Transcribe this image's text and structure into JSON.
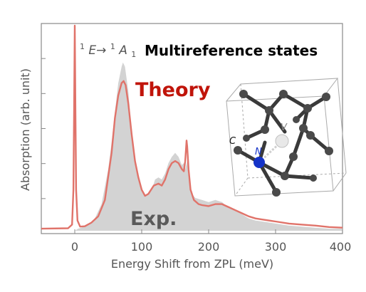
{
  "chart_data": {
    "type": "area",
    "xlabel": "Energy Shift from ZPL (meV)",
    "ylabel": "Absorption (arb. unit)",
    "xlim": [
      -50,
      400
    ],
    "ylim": [
      0,
      1.0
    ],
    "x_ticks": [
      "0",
      "100",
      "200",
      "300",
      "400"
    ],
    "annotations": {
      "transition_pre": "1",
      "transition_mid": "E→",
      "transition_sup2": "1",
      "transition_A": "A",
      "transition_sub": "1",
      "header": "Multireference states",
      "theory": "Theory",
      "experiment": "Exp.",
      "atom_c": "C",
      "atom_n": "N",
      "atom_v": "V"
    },
    "series": [
      {
        "name": "Exp.",
        "style": "filled",
        "color": "#d3d3d3",
        "points": [
          [
            -50,
            0.0
          ],
          [
            0,
            0.0
          ],
          [
            5,
            0.01
          ],
          [
            10,
            0.015
          ],
          [
            20,
            0.03
          ],
          [
            30,
            0.06
          ],
          [
            40,
            0.13
          ],
          [
            50,
            0.3
          ],
          [
            55,
            0.43
          ],
          [
            60,
            0.58
          ],
          [
            65,
            0.72
          ],
          [
            70,
            0.8
          ],
          [
            72,
            0.82
          ],
          [
            75,
            0.8
          ],
          [
            80,
            0.68
          ],
          [
            85,
            0.48
          ],
          [
            90,
            0.34
          ],
          [
            95,
            0.26
          ],
          [
            100,
            0.2
          ],
          [
            105,
            0.17
          ],
          [
            110,
            0.18
          ],
          [
            115,
            0.2
          ],
          [
            120,
            0.25
          ],
          [
            125,
            0.26
          ],
          [
            130,
            0.25
          ],
          [
            135,
            0.28
          ],
          [
            140,
            0.33
          ],
          [
            145,
            0.36
          ],
          [
            150,
            0.38
          ],
          [
            155,
            0.36
          ],
          [
            160,
            0.32
          ],
          [
            163,
            0.33
          ],
          [
            165,
            0.3
          ],
          [
            168,
            0.34
          ],
          [
            170,
            0.26
          ],
          [
            175,
            0.18
          ],
          [
            180,
            0.16
          ],
          [
            190,
            0.15
          ],
          [
            200,
            0.14
          ],
          [
            210,
            0.15
          ],
          [
            220,
            0.14
          ],
          [
            230,
            0.11
          ],
          [
            240,
            0.1
          ],
          [
            250,
            0.08
          ],
          [
            260,
            0.06
          ],
          [
            270,
            0.05
          ],
          [
            280,
            0.045
          ],
          [
            300,
            0.035
          ],
          [
            320,
            0.025
          ],
          [
            340,
            0.02
          ],
          [
            360,
            0.015
          ],
          [
            380,
            0.01
          ],
          [
            400,
            0.01
          ]
        ]
      },
      {
        "name": "Theory",
        "style": "line",
        "color": "#e0736a",
        "points": [
          [
            -50,
            0.01
          ],
          [
            -10,
            0.012
          ],
          [
            -4,
            0.03
          ],
          [
            -2,
            0.2
          ],
          [
            -1,
            0.6
          ],
          [
            0,
            1.0
          ],
          [
            1,
            0.6
          ],
          [
            2,
            0.2
          ],
          [
            4,
            0.05
          ],
          [
            8,
            0.02
          ],
          [
            15,
            0.022
          ],
          [
            25,
            0.04
          ],
          [
            35,
            0.07
          ],
          [
            45,
            0.15
          ],
          [
            55,
            0.38
          ],
          [
            60,
            0.55
          ],
          [
            65,
            0.66
          ],
          [
            70,
            0.72
          ],
          [
            73,
            0.73
          ],
          [
            76,
            0.71
          ],
          [
            80,
            0.62
          ],
          [
            85,
            0.47
          ],
          [
            90,
            0.34
          ],
          [
            95,
            0.26
          ],
          [
            100,
            0.2
          ],
          [
            105,
            0.17
          ],
          [
            110,
            0.18
          ],
          [
            118,
            0.22
          ],
          [
            125,
            0.23
          ],
          [
            130,
            0.22
          ],
          [
            135,
            0.25
          ],
          [
            140,
            0.3
          ],
          [
            145,
            0.33
          ],
          [
            150,
            0.34
          ],
          [
            155,
            0.33
          ],
          [
            160,
            0.3
          ],
          [
            163,
            0.29
          ],
          [
            165,
            0.34
          ],
          [
            167,
            0.44
          ],
          [
            168,
            0.41
          ],
          [
            170,
            0.3
          ],
          [
            173,
            0.2
          ],
          [
            178,
            0.15
          ],
          [
            185,
            0.13
          ],
          [
            190,
            0.125
          ],
          [
            200,
            0.12
          ],
          [
            210,
            0.13
          ],
          [
            220,
            0.13
          ],
          [
            230,
            0.115
          ],
          [
            240,
            0.1
          ],
          [
            250,
            0.085
          ],
          [
            260,
            0.07
          ],
          [
            270,
            0.06
          ],
          [
            280,
            0.055
          ],
          [
            300,
            0.045
          ],
          [
            320,
            0.035
          ],
          [
            340,
            0.03
          ],
          [
            360,
            0.025
          ],
          [
            380,
            0.018
          ],
          [
            400,
            0.015
          ]
        ]
      }
    ]
  }
}
